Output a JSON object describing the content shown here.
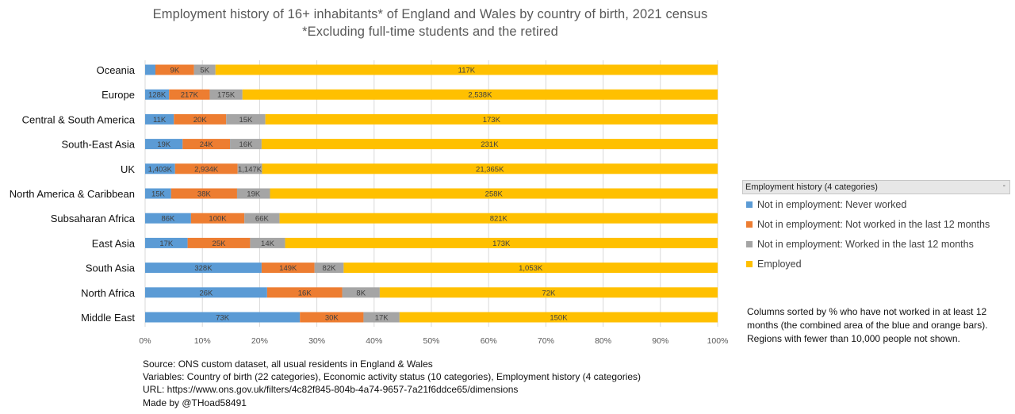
{
  "chart_data": {
    "type": "bar",
    "orientation": "horizontal",
    "stacked": true,
    "normalized": true,
    "title": "Employment history of 16+ inhabitants* of England and Wales by country of birth, 2021 census",
    "subtitle": "*Excluding full-time students and the retired",
    "xlim": [
      0,
      100
    ],
    "x_ticks": [
      "0%",
      "10%",
      "20%",
      "30%",
      "40%",
      "50%",
      "60%",
      "70%",
      "80%",
      "90%",
      "100%"
    ],
    "grid": true,
    "categories": [
      "Oceania",
      "Europe",
      "Central & South America",
      "South-East Asia",
      "UK",
      "North America & Caribbean",
      "Subsaharan Africa",
      "East Asia",
      "South Asia",
      "North Africa",
      "Middle East"
    ],
    "series": [
      {
        "name": "Not in employment: Never worked",
        "color": "#5b9bd5",
        "values": [
          2.4,
          128,
          11,
          19,
          1403,
          15,
          86,
          17,
          328,
          26,
          73
        ],
        "labels": [
          "",
          "128K",
          "11K",
          "19K",
          "1,403K",
          "15K",
          "86K",
          "17K",
          "328K",
          "26K",
          "73K"
        ]
      },
      {
        "name": "Not in employment: Not worked in the last 12 months",
        "color": "#ed7d31",
        "values": [
          9,
          217,
          20,
          24,
          2934,
          38,
          100,
          25,
          149,
          16,
          30
        ],
        "labels": [
          "9K",
          "217K",
          "20K",
          "24K",
          "2,934K",
          "38K",
          "100K",
          "25K",
          "149K",
          "16K",
          "30K"
        ]
      },
      {
        "name": "Not in employment: Worked in the last 12 months",
        "color": "#a5a5a5",
        "values": [
          5,
          175,
          15,
          16,
          1147,
          19,
          66,
          14,
          82,
          8,
          17
        ],
        "labels": [
          "5K",
          "175K",
          "15K",
          "16K",
          "1,147K",
          "19K",
          "66K",
          "14K",
          "82K",
          "8K",
          "17K"
        ]
      },
      {
        "name": "Employed",
        "color": "#ffc000",
        "values": [
          117,
          2538,
          173,
          231,
          21365,
          258,
          821,
          173,
          1053,
          72,
          150
        ],
        "labels": [
          "117K",
          "2,538K",
          "173K",
          "231K",
          "21,365K",
          "258K",
          "821K",
          "173K",
          "1,053K",
          "72K",
          "150K"
        ]
      }
    ],
    "legend_title": "Employment history (4 categories)",
    "legend_collapse": "-",
    "legend_position": "right"
  },
  "note": "Columns sorted by % who have not worked in at least 12 months (the combined area of the blue and orange bars). Regions with fewer than 10,000 people not shown.",
  "source": {
    "line1": "Source: ONS custom dataset, all usual residents in England & Wales",
    "line2": "Variables: Country of birth (22 categories), Economic activity status (10 categories), Employment history (4 categories)",
    "line3": "URL: https://www.ons.gov.uk/filters/4c82f845-804b-4a74-9657-7a21f6ddce65/dimensions",
    "line4": "Made by @THoad58491"
  }
}
